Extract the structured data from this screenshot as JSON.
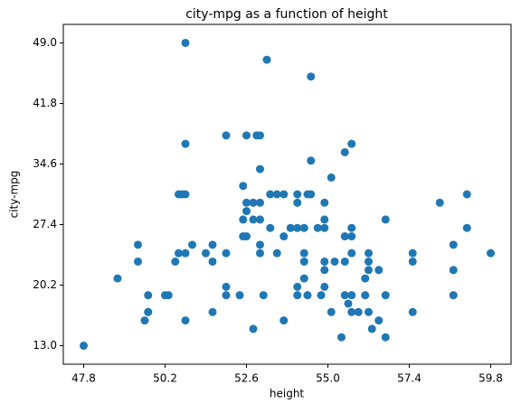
{
  "chart_data": {
    "type": "scatter",
    "title": "city-mpg as a function of height",
    "x_label": "height",
    "y_label": "city-mpg",
    "color": "#1f77b4",
    "xlim": [
      47.2,
      60.4
    ],
    "ylim": [
      10.8,
      51.2
    ],
    "xticks": [
      47.8,
      50.2,
      52.6,
      {
        "value": 55,
        "label": "55.0"
      },
      57.4,
      59.8
    ],
    "yticks": [
      {
        "value": 13,
        "label": "13.0"
      },
      20.2,
      27.4,
      34.6,
      41.8,
      {
        "value": 49,
        "label": "49.0"
      }
    ],
    "x": [
      47.8,
      48.8,
      49.4,
      49.4,
      49.6,
      49.7,
      49.7,
      49.7,
      50.2,
      50.3,
      50.5,
      50.6,
      50.6,
      50.7,
      50.8,
      50.8,
      50.8,
      50.8,
      50.8,
      51.0,
      51.4,
      51.6,
      51.6,
      51.6,
      52.0,
      52.0,
      52.0,
      52.0,
      52.4,
      52.5,
      52.5,
      52.5,
      52.6,
      52.6,
      52.6,
      52.6,
      52.8,
      52.8,
      52.8,
      52.9,
      53.0,
      53.0,
      53.0,
      53.0,
      53.0,
      53.0,
      53.1,
      53.2,
      53.3,
      53.3,
      53.5,
      53.5,
      53.7,
      53.7,
      53.7,
      53.9,
      54.1,
      54.1,
      54.1,
      54.1,
      54.1,
      54.3,
      54.3,
      54.3,
      54.3,
      54.4,
      54.5,
      54.5,
      54.5,
      54.4,
      54.7,
      54.8,
      54.9,
      54.9,
      54.9,
      54.9,
      54.9,
      54.9,
      55.1,
      55.1,
      55.2,
      55.4,
      55.5,
      55.5,
      55.5,
      55.5,
      55.6,
      55.7,
      55.7,
      55.7,
      55.7,
      55.7,
      55.7,
      55.9,
      56.1,
      56.1,
      56.2,
      56.2,
      56.2,
      56.2,
      56.3,
      56.5,
      56.5,
      56.7,
      56.7,
      56.7,
      57.5,
      57.5,
      57.5,
      58.3,
      58.7,
      58.7,
      58.7,
      59.1,
      59.1,
      59.8
    ],
    "values": [
      13,
      21,
      25,
      23,
      16,
      17,
      17,
      19,
      19,
      19,
      23,
      24,
      31,
      31,
      31,
      49,
      37,
      16,
      24,
      25,
      24,
      23,
      25,
      17,
      24,
      20,
      19,
      38,
      19,
      32,
      28,
      26,
      29,
      30,
      38,
      26,
      28,
      15,
      30,
      38,
      38,
      28,
      25,
      34,
      30,
      24,
      19,
      47,
      27,
      31,
      31,
      24,
      31,
      26,
      16,
      27,
      31,
      30,
      27,
      20,
      19,
      24,
      23,
      21,
      27,
      31,
      45,
      35,
      31,
      19,
      27,
      19,
      30,
      28,
      27,
      23,
      22,
      20,
      33,
      17,
      23,
      14,
      19,
      36,
      26,
      23,
      18,
      37,
      27,
      26,
      24,
      19,
      17,
      17,
      21,
      19,
      17,
      24,
      23,
      22,
      15,
      22,
      16,
      28,
      19,
      14,
      24,
      23,
      17,
      30,
      25,
      22,
      19,
      31,
      27,
      24
    ]
  }
}
